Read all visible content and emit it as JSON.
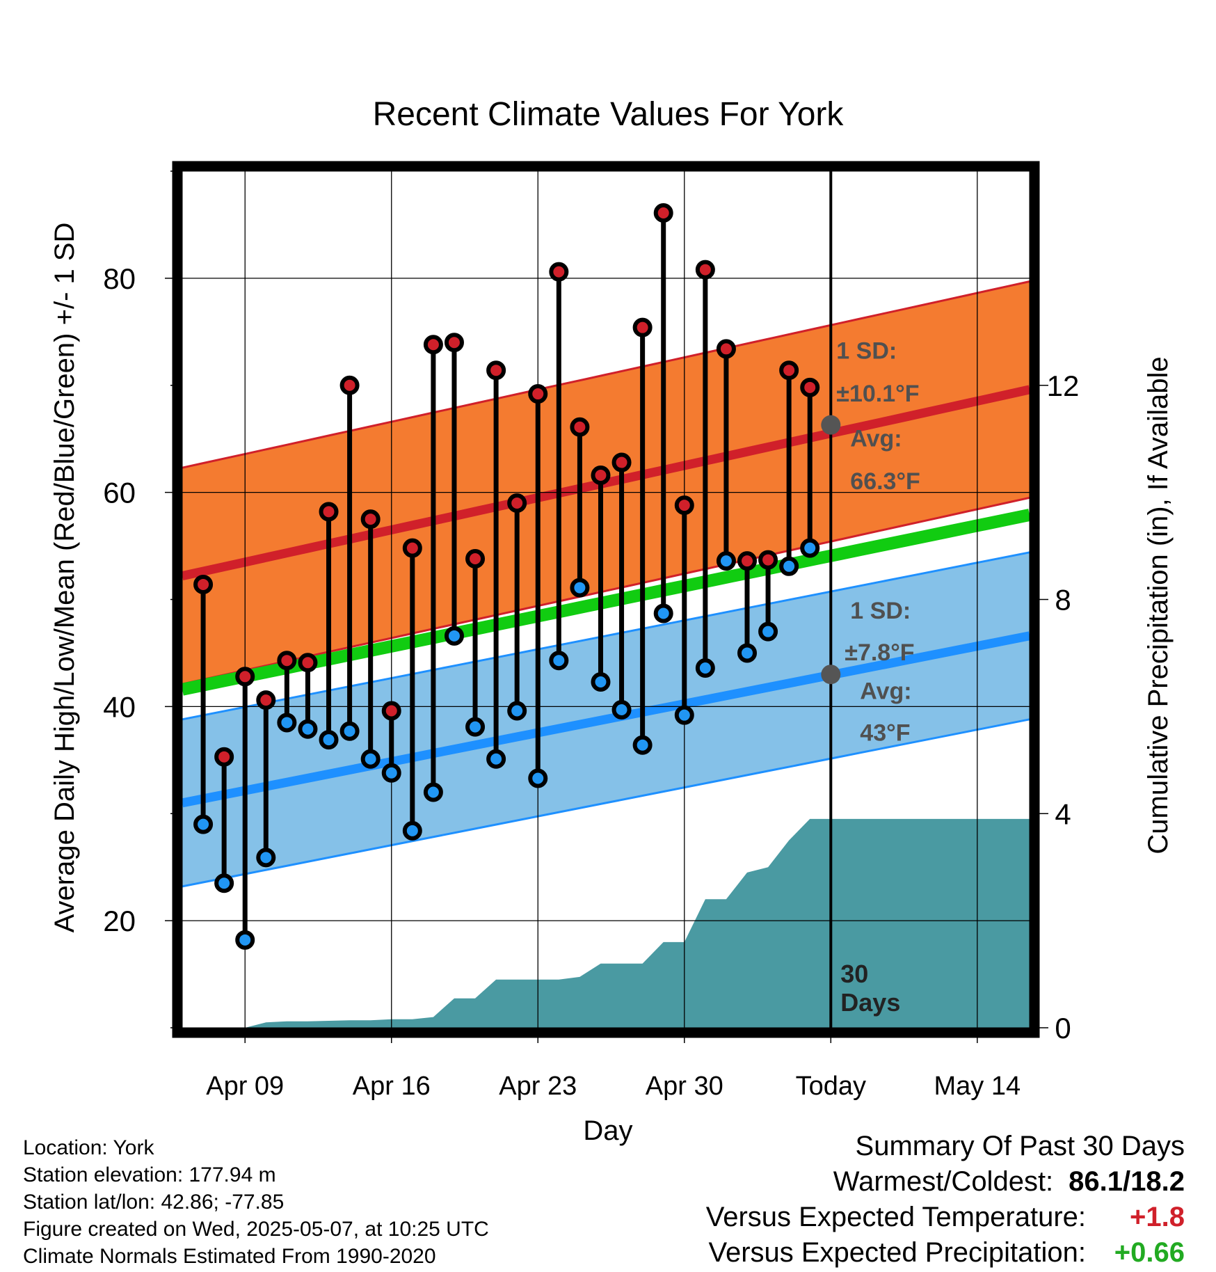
{
  "chart_data": {
    "type": "line",
    "title": "Recent Climate Values For York",
    "xlabel": "Day",
    "ylabel": "Average Daily High/Low/Mean (Red/Blue/Green) +/- 1 SD",
    "y2label": "Cumulative Precipitation (in), If Available",
    "ylim": [
      10,
      90
    ],
    "y2lim": [
      0,
      16
    ],
    "yticks": [
      20,
      40,
      60,
      80
    ],
    "y2ticks": [
      0,
      4,
      8,
      12
    ],
    "x_tick_labels": [
      "Apr 09",
      "Apr 16",
      "Apr 23",
      "Apr 30",
      "Today",
      "May 14"
    ],
    "x_tick_days": [
      -28,
      -21,
      -14,
      -7,
      0,
      7
    ],
    "x_range_days": [
      -31,
      9.5
    ],
    "today_marker": {
      "label_line1": "30",
      "label_line2": "Days"
    },
    "grid": true,
    "daily": {
      "days_relative_to_today": [
        -30,
        -29,
        -28,
        -27,
        -26,
        -25,
        -24,
        -23,
        -22,
        -21,
        -20,
        -19,
        -18,
        -17,
        -16,
        -15,
        -14,
        -13,
        -12,
        -11,
        -10,
        -9,
        -8,
        -7,
        -6,
        -5,
        -4,
        -3,
        -2,
        -1
      ],
      "highs": [
        51.4,
        35.3,
        42.8,
        40.6,
        44.3,
        44.1,
        58.2,
        70.0,
        57.5,
        39.6,
        54.8,
        73.8,
        74.0,
        53.8,
        71.4,
        59.0,
        69.2,
        80.6,
        66.1,
        61.6,
        62.8,
        75.4,
        86.1,
        58.8,
        80.8,
        73.4,
        53.6,
        53.7,
        71.4,
        69.8
      ],
      "lows": [
        29.0,
        23.5,
        18.2,
        25.9,
        38.5,
        37.9,
        36.9,
        37.7,
        35.1,
        33.8,
        28.4,
        32.0,
        46.6,
        38.1,
        35.1,
        39.6,
        33.3,
        44.3,
        51.1,
        42.3,
        39.7,
        36.4,
        48.7,
        39.2,
        43.6,
        53.6,
        45.0,
        47.0,
        53.1,
        54.8
      ],
      "high_color": "#d0202a",
      "low_color": "#2196f3"
    },
    "normals": {
      "high_mean_start": 52.2,
      "high_mean_end": 69.6,
      "high_sd": 10.1,
      "low_mean_start": 31.0,
      "low_mean_end": 46.6,
      "low_sd": 7.8,
      "mean_start": 41.6,
      "mean_end": 57.9,
      "high_band_color": "#f47b30",
      "high_line_color": "#d0202a",
      "low_band_color": "#85c1e8",
      "low_line_color": "#1e90ff",
      "mean_color": "#11cc11"
    },
    "annotations": {
      "high_sd_label": "1 SD:",
      "high_sd_value": "±10.1°F",
      "high_avg_label": "Avg:",
      "high_avg_value": "66.3°F",
      "high_today_avg": 66.3,
      "low_sd_label": "1 SD:",
      "low_sd_value": "±7.8°F",
      "low_avg_label": "Avg:",
      "low_avg_value": "43°F",
      "low_today_avg": 43
    },
    "precipitation": {
      "color": "#4a9aa2",
      "days_relative_to_today": [
        -31,
        -30,
        -29,
        -28,
        -27,
        -26,
        -25,
        -24,
        -23,
        -22,
        -21,
        -20,
        -19,
        -18,
        -17,
        -16,
        -15,
        -14,
        -13,
        -12,
        -11,
        -10,
        -9,
        -8,
        -7,
        -6,
        -5,
        -4,
        -3,
        -2,
        -1,
        9.5
      ],
      "cumulative_inches": [
        0,
        0,
        0,
        0,
        0.1,
        0.12,
        0.12,
        0.13,
        0.14,
        0.14,
        0.16,
        0.16,
        0.2,
        0.55,
        0.55,
        0.9,
        0.9,
        0.9,
        0.9,
        0.95,
        1.2,
        1.2,
        1.2,
        1.6,
        1.6,
        2.4,
        2.4,
        2.9,
        3.0,
        3.5,
        3.9,
        3.9
      ]
    }
  },
  "info": {
    "location": "Location: York",
    "elevation": "Station elevation: 177.94 m",
    "latlon": "Station lat/lon: 42.86; -77.85",
    "created": "Figure created on Wed, 2025-05-07, at 10:25 UTC",
    "normals": "Climate Normals Estimated From 1990-2020"
  },
  "summary": {
    "title": "Summary Of Past 30 Days",
    "warm_cold_label": "Warmest/Coldest:",
    "warm_cold_value": "86.1/18.2",
    "temp_label": "Versus Expected Temperature:",
    "temp_value": "+1.8",
    "temp_color": "#d0202a",
    "precip_label": "Versus Expected Precipitation:",
    "precip_value": "+0.66",
    "precip_color": "#22aa22"
  }
}
